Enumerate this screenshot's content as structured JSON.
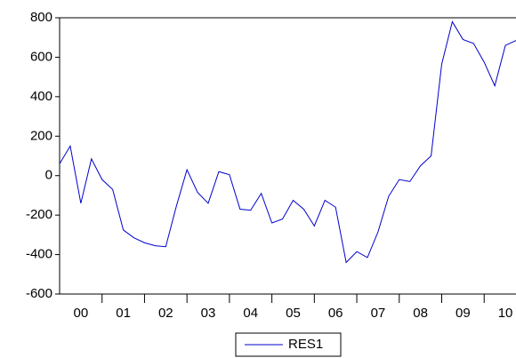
{
  "chart_data": {
    "type": "line",
    "x": [
      0,
      0.25,
      0.5,
      0.75,
      1,
      1.25,
      1.5,
      1.75,
      2,
      2.25,
      2.5,
      2.75,
      3,
      3.25,
      3.5,
      3.75,
      4,
      4.25,
      4.5,
      4.75,
      5,
      5.25,
      5.5,
      5.75,
      6,
      6.25,
      6.5,
      6.75,
      7,
      7.25,
      7.5,
      7.75,
      8,
      8.25,
      8.5,
      8.75,
      9,
      9.25,
      9.5,
      9.75,
      10,
      10.25,
      10.5,
      10.75
    ],
    "series": [
      {
        "name": "RES1",
        "color": "#0000cc",
        "values": [
          60,
          150,
          -140,
          85,
          -20,
          -70,
          -275,
          -315,
          -340,
          -355,
          -360,
          -155,
          30,
          -85,
          -140,
          20,
          5,
          -170,
          -175,
          -90,
          -240,
          -220,
          -125,
          -170,
          -255,
          -125,
          -160,
          -440,
          -385,
          -415,
          -285,
          -105,
          -20,
          -30,
          50,
          100,
          565,
          780,
          690,
          670,
          575,
          455,
          660,
          685
        ]
      }
    ],
    "xlim": [
      0,
      10.75
    ],
    "xticks": [
      {
        "value": 0.5,
        "label": "00"
      },
      {
        "value": 1.5,
        "label": "01"
      },
      {
        "value": 2.5,
        "label": "02"
      },
      {
        "value": 3.5,
        "label": "03"
      },
      {
        "value": 4.5,
        "label": "04"
      },
      {
        "value": 5.5,
        "label": "05"
      },
      {
        "value": 6.5,
        "label": "06"
      },
      {
        "value": 7.5,
        "label": "07"
      },
      {
        "value": 8.5,
        "label": "08"
      },
      {
        "value": 9.5,
        "label": "09"
      },
      {
        "value": 10.5,
        "label": "10"
      }
    ],
    "ylim": [
      -600,
      800
    ],
    "yticks": [
      -600,
      -400,
      -200,
      0,
      200,
      400,
      600,
      800
    ],
    "grid": false,
    "legend": "bottom"
  }
}
